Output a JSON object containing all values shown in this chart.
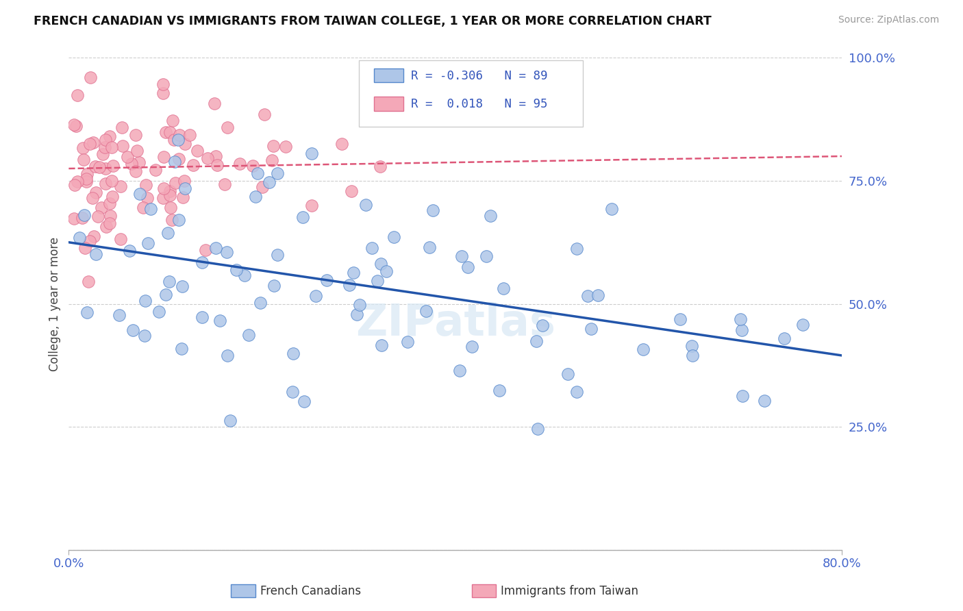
{
  "title": "FRENCH CANADIAN VS IMMIGRANTS FROM TAIWAN COLLEGE, 1 YEAR OR MORE CORRELATION CHART",
  "source": "Source: ZipAtlas.com",
  "ylabel": "College, 1 year or more",
  "xlim": [
    0.0,
    0.8
  ],
  "ylim": [
    0.0,
    1.0
  ],
  "yticks": [
    0.0,
    0.25,
    0.5,
    0.75,
    1.0
  ],
  "ytick_labels": [
    "",
    "25.0%",
    "50.0%",
    "75.0%",
    "100.0%"
  ],
  "blue_R": -0.306,
  "blue_N": 89,
  "pink_R": 0.018,
  "pink_N": 95,
  "blue_color": "#AEC6E8",
  "pink_color": "#F4A8B8",
  "blue_edge_color": "#5588CC",
  "pink_edge_color": "#E07090",
  "blue_line_color": "#2255AA",
  "pink_line_color": "#DD5577",
  "watermark": "ZIPatlas",
  "legend_label_blue": "French Canadians",
  "legend_label_pink": "Immigrants from Taiwan",
  "blue_line_y0": 0.625,
  "blue_line_y1": 0.395,
  "pink_line_y0": 0.775,
  "pink_line_y1": 0.8
}
